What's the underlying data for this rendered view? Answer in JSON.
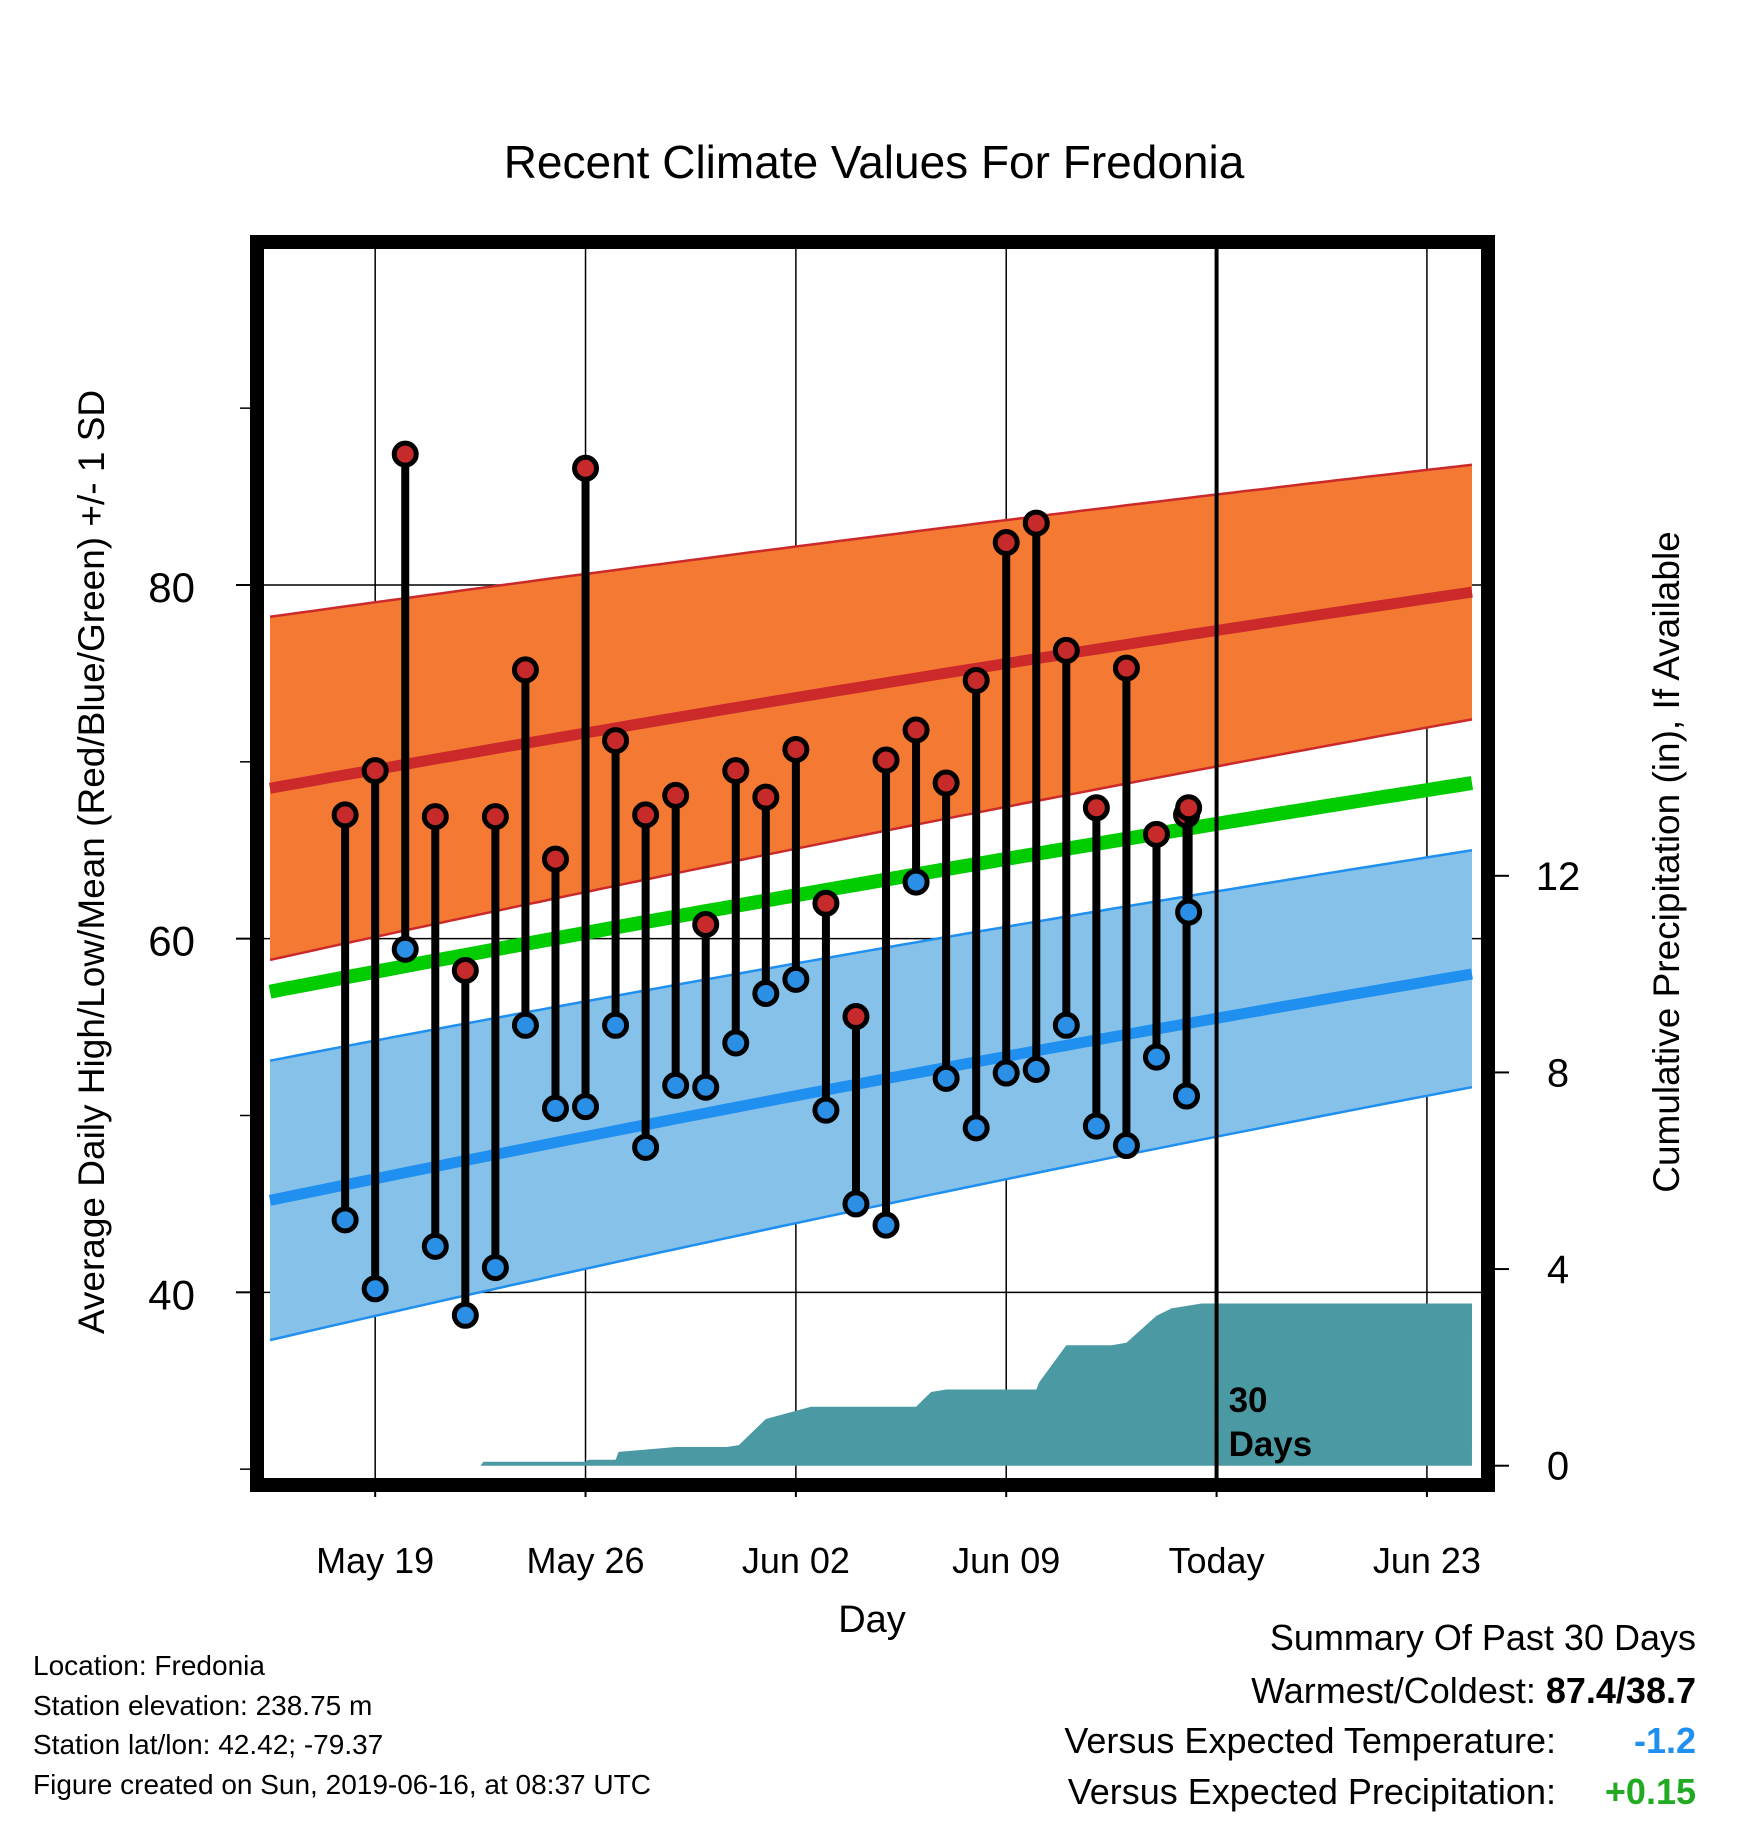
{
  "chart_data": {
    "type": "line",
    "title": "Recent Climate Values For Fredonia",
    "xlabel": "Day",
    "ylabel_left": "Average Daily High/Low/Mean (Red/Blue/Green) +/- 1 SD",
    "ylabel_right": "Cumulative Precipitation (in), If Available",
    "x_ticks": [
      {
        "day": 2,
        "label": "May 19"
      },
      {
        "day": 9,
        "label": "May 26"
      },
      {
        "day": 16,
        "label": "Jun 02"
      },
      {
        "day": 23,
        "label": "Jun 09"
      },
      {
        "day": 30,
        "label": "Today"
      },
      {
        "day": 37,
        "label": "Jun 23"
      }
    ],
    "xlim": [
      -1.7,
      38.8
    ],
    "y_left_lim": [
      29.5,
      99
    ],
    "y_left_ticks": [
      40,
      60,
      80
    ],
    "y_left_minor_ticks": [
      30,
      50,
      70,
      90
    ],
    "y_right_lim": [
      -0.25,
      24.75
    ],
    "y_right_ticks": [
      0,
      4,
      8,
      12
    ],
    "grid": true,
    "today_marker": {
      "day": 30,
      "label_line1": "30",
      "label_line2": "Days"
    },
    "normal_high": {
      "x": [
        -1.5,
        38.5
      ],
      "mean": [
        68.5,
        79.6
      ],
      "upper": [
        78.2,
        86.8
      ],
      "lower": [
        58.8,
        72.4
      ]
    },
    "normal_low": {
      "x": [
        -1.5,
        38.5
      ],
      "mean": [
        45.2,
        58.0
      ],
      "upper": [
        53.1,
        65.0
      ],
      "lower": [
        37.3,
        51.6
      ]
    },
    "normal_mean": {
      "x": [
        -1.5,
        38.5
      ],
      "values": [
        57.0,
        68.8
      ]
    },
    "daily": {
      "days": [
        1,
        2,
        3,
        4,
        5,
        6,
        7,
        8,
        9,
        10,
        11,
        12,
        13,
        14,
        15,
        16,
        17,
        18,
        19,
        20,
        21,
        22,
        23,
        24,
        25,
        26,
        27,
        28,
        29
      ],
      "highs": [
        67.0,
        69.5,
        87.4,
        66.9,
        58.2,
        66.9,
        75.2,
        64.5,
        86.6,
        71.2,
        67.0,
        68.1,
        60.8,
        69.5,
        68.0,
        70.7,
        62.0,
        55.6,
        70.1,
        71.8,
        68.8,
        74.6,
        82.4,
        83.5,
        76.3,
        67.4,
        75.3,
        65.9,
        67.0
      ],
      "lows": [
        44.1,
        40.2,
        59.4,
        42.6,
        38.7,
        41.4,
        55.1,
        50.4,
        50.5,
        55.1,
        48.2,
        51.7,
        51.6,
        54.1,
        56.9,
        57.7,
        50.3,
        45.0,
        43.8,
        63.2,
        52.1,
        49.3,
        52.4,
        52.6,
        55.1,
        49.4,
        48.3,
        53.3,
        51.1
      ],
      "today_high": 67.4,
      "today_low": 61.5,
      "today_day": 30
    },
    "cumulative_precip": {
      "days": [
        -1.5,
        5.5,
        5.6,
        9.0,
        9.1,
        10.0,
        10.1,
        12.0,
        13.7,
        14.1,
        15.0,
        16.5,
        17.0,
        20.0,
        20.5,
        21.0,
        24.0,
        24.1,
        25.0,
        26.5,
        27.0,
        28.0,
        28.5,
        29.5,
        38.5
      ],
      "values": [
        0,
        0,
        0.08,
        0.08,
        0.12,
        0.12,
        0.28,
        0.38,
        0.38,
        0.42,
        0.95,
        1.2,
        1.2,
        1.2,
        1.5,
        1.55,
        1.55,
        1.7,
        2.45,
        2.45,
        2.5,
        3.05,
        3.2,
        3.3,
        3.3
      ]
    },
    "colors": {
      "high_band": "#f47a33",
      "high_line": "#cc2a2a",
      "low_band": "#85c1e8",
      "low_line": "#1f8ff0",
      "mean_line": "#00cc00",
      "precip": "#4b9aa3",
      "high_dot": "#c62a2a",
      "low_dot": "#2b8fe6"
    }
  },
  "info": {
    "location": "Location: Fredonia",
    "elevation": "Station elevation: 238.75 m",
    "latlon": "Station lat/lon: 42.42; -79.37",
    "created": "Figure created on Sun, 2019-06-16, at 08:37 UTC"
  },
  "summary": {
    "heading": "Summary Of Past 30 Days",
    "warmest_label": "Warmest/Coldest:",
    "warmest_value": "87.4/38.7",
    "temp_label": "Versus Expected Temperature:",
    "temp_value": "-1.2",
    "temp_color": "#1f8ff0",
    "precip_label": "Versus Expected Precipitation:",
    "precip_value": "+0.15",
    "precip_color": "#22aa22"
  }
}
